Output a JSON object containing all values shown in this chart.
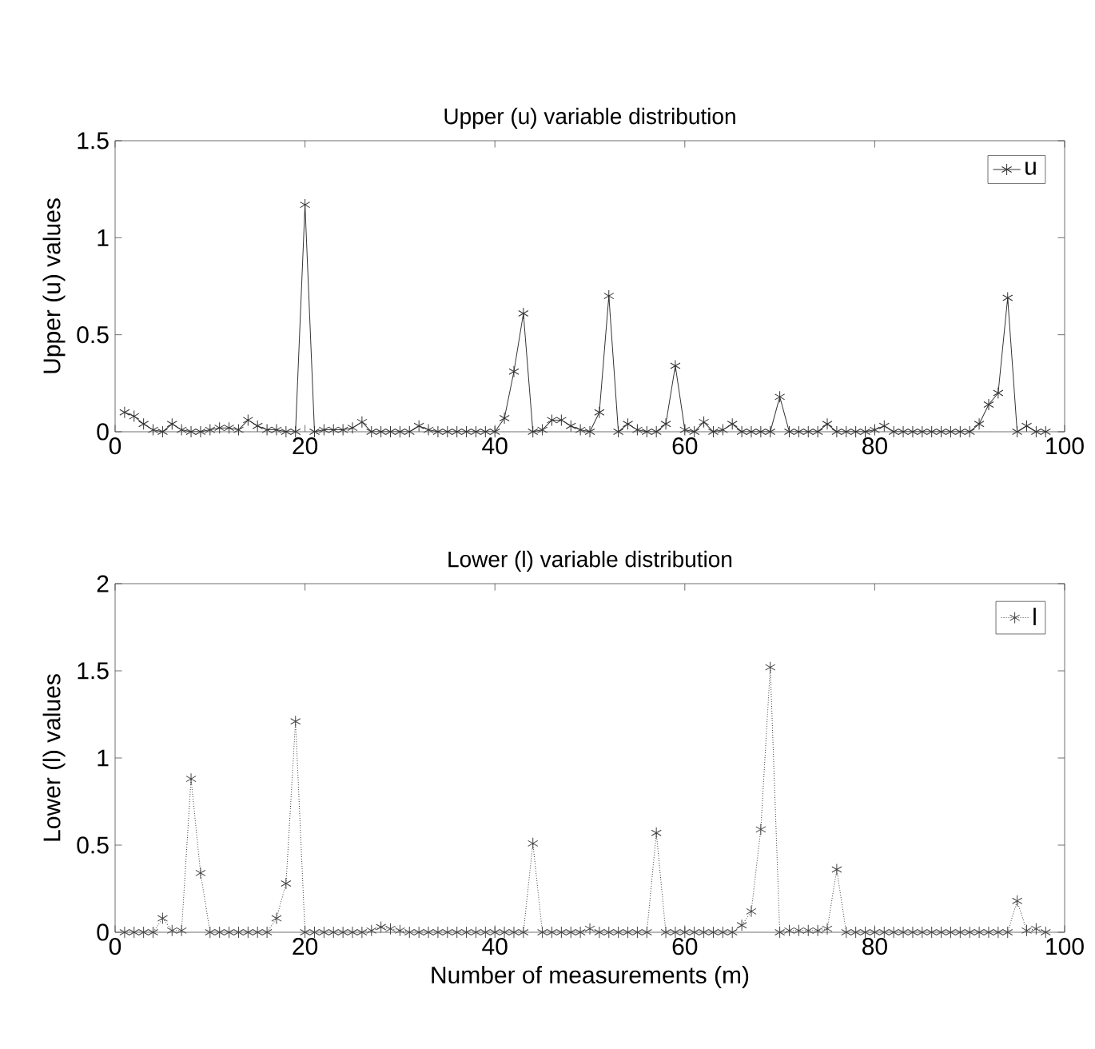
{
  "chart_data": [
    {
      "type": "line",
      "title": "Upper (u) variable distribution",
      "ylabel": "Upper (u) values",
      "x": [
        1,
        2,
        3,
        4,
        5,
        6,
        7,
        8,
        9,
        10,
        11,
        12,
        13,
        14,
        15,
        16,
        17,
        18,
        19,
        20,
        21,
        22,
        23,
        24,
        25,
        26,
        27,
        28,
        29,
        30,
        31,
        32,
        33,
        34,
        35,
        36,
        37,
        38,
        39,
        40,
        41,
        42,
        43,
        44,
        45,
        46,
        47,
        48,
        49,
        50,
        51,
        52,
        53,
        54,
        55,
        56,
        57,
        58,
        59,
        60,
        61,
        62,
        63,
        64,
        65,
        66,
        67,
        68,
        69,
        70,
        71,
        72,
        73,
        74,
        75,
        76,
        77,
        78,
        79,
        80,
        81,
        82,
        83,
        84,
        85,
        86,
        87,
        88,
        89,
        90,
        91,
        92,
        93,
        94,
        95,
        96,
        97,
        98
      ],
      "series": [
        {
          "name": "u",
          "color": "#333333",
          "values": [
            0.1,
            0.08,
            0.04,
            0.01,
            0,
            0.04,
            0.01,
            0,
            0,
            0.01,
            0.02,
            0.02,
            0.01,
            0.06,
            0.03,
            0.01,
            0.01,
            0,
            0,
            1.17,
            0,
            0.01,
            0.01,
            0.01,
            0.02,
            0.05,
            0,
            0,
            0,
            0,
            0,
            0.03,
            0.01,
            0,
            0,
            0,
            0,
            0,
            0,
            0,
            0.07,
            0.31,
            0.61,
            0,
            0.01,
            0.06,
            0.06,
            0.03,
            0.01,
            0,
            0.1,
            0.7,
            0,
            0.04,
            0.01,
            0,
            0,
            0.04,
            0.34,
            0.01,
            0,
            0.05,
            0,
            0.01,
            0.04,
            0,
            0,
            0,
            0,
            0.18,
            0,
            0,
            0,
            0,
            0.04,
            0,
            0,
            0,
            0,
            0.01,
            0.03,
            0,
            0,
            0,
            0,
            0,
            0,
            0,
            0,
            0,
            0.04,
            0.14,
            0.2,
            0.69,
            0,
            0.03,
            0,
            0
          ]
        }
      ],
      "xlim": [
        0,
        100
      ],
      "xticks": [
        0,
        20,
        40,
        60,
        80,
        100
      ],
      "ylim": [
        0,
        1.5
      ],
      "yticks": [
        0,
        0.5,
        1,
        1.5
      ],
      "legend": "top right",
      "marker": "cross",
      "line_style": "solid",
      "grid": false
    },
    {
      "type": "line",
      "title": "Lower (l) variable distribution",
      "ylabel": "Lower (l) values",
      "xlabel": "Number of measurements (m)",
      "x": [
        1,
        2,
        3,
        4,
        5,
        6,
        7,
        8,
        9,
        10,
        11,
        12,
        13,
        14,
        15,
        16,
        17,
        18,
        19,
        20,
        21,
        22,
        23,
        24,
        25,
        26,
        27,
        28,
        29,
        30,
        31,
        32,
        33,
        34,
        35,
        36,
        37,
        38,
        39,
        40,
        41,
        42,
        43,
        44,
        45,
        46,
        47,
        48,
        49,
        50,
        51,
        52,
        53,
        54,
        55,
        56,
        57,
        58,
        59,
        60,
        61,
        62,
        63,
        64,
        65,
        66,
        67,
        68,
        69,
        70,
        71,
        72,
        73,
        74,
        75,
        76,
        77,
        78,
        79,
        80,
        81,
        82,
        83,
        84,
        85,
        86,
        87,
        88,
        89,
        90,
        91,
        92,
        93,
        94,
        95,
        96,
        97,
        98
      ],
      "series": [
        {
          "name": "l",
          "color": "#444444",
          "values": [
            0,
            0,
            0,
            0,
            0.08,
            0.01,
            0.01,
            0.88,
            0.34,
            0,
            0,
            0,
            0,
            0,
            0,
            0,
            0.08,
            0.28,
            1.21,
            0,
            0,
            0,
            0,
            0,
            0,
            0,
            0.01,
            0.03,
            0.02,
            0.01,
            0,
            0,
            0,
            0,
            0,
            0,
            0,
            0,
            0,
            0,
            0,
            0,
            0,
            0.51,
            0,
            0,
            0,
            0,
            0,
            0.02,
            0,
            0,
            0,
            0,
            0,
            0,
            0.57,
            0,
            0,
            0,
            0,
            0,
            0,
            0,
            0,
            0.04,
            0.12,
            0.59,
            1.52,
            0,
            0.01,
            0.01,
            0.01,
            0.01,
            0.02,
            0.36,
            0,
            0,
            0,
            0,
            0,
            0,
            0,
            0,
            0,
            0,
            0,
            0,
            0,
            0,
            0,
            0,
            0,
            0,
            0.18,
            0.01,
            0.02,
            0
          ]
        }
      ],
      "xlim": [
        0,
        100
      ],
      "xticks": [
        0,
        20,
        40,
        60,
        80,
        100
      ],
      "ylim": [
        0,
        2
      ],
      "yticks": [
        0,
        0.5,
        1,
        1.5,
        2
      ],
      "legend": "top right",
      "marker": "cross",
      "line_style": "dotted",
      "grid": false
    }
  ]
}
